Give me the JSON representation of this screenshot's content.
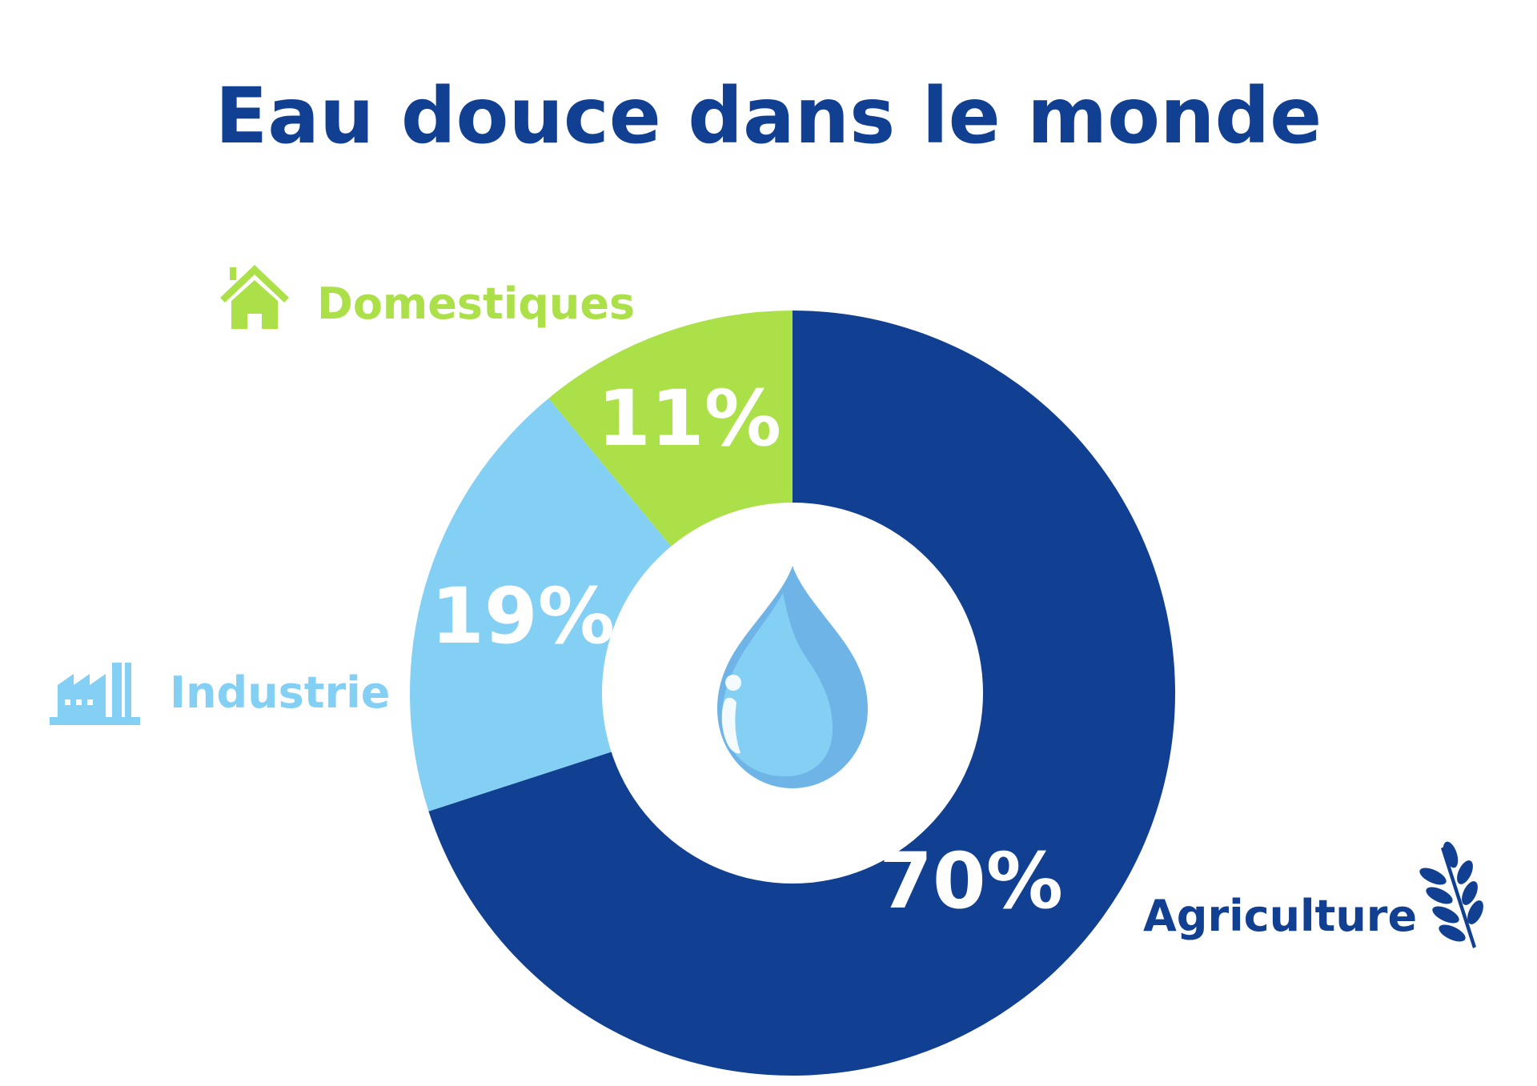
{
  "chart_data": {
    "type": "pie",
    "title": "Eau douce dans le monde",
    "categories": [
      "Agriculture",
      "Industrie",
      "Domestiques"
    ],
    "values": [
      70,
      19,
      11
    ],
    "value_labels": [
      "70%",
      "19%",
      "11%"
    ],
    "colors": [
      "#113f91",
      "#84d0f5",
      "#abe048"
    ],
    "hole": true
  },
  "colors": {
    "title": "#113f91",
    "background": "#ffffff",
    "label_on_slice": "#ffffff",
    "drop_light": "#84d0f5",
    "drop_dark": "#6eb4e6"
  },
  "icons": {
    "center": "water-drop-info-icon",
    "Agriculture": "wheat-icon",
    "Industrie": "factory-icon",
    "Domestiques": "house-icon"
  }
}
